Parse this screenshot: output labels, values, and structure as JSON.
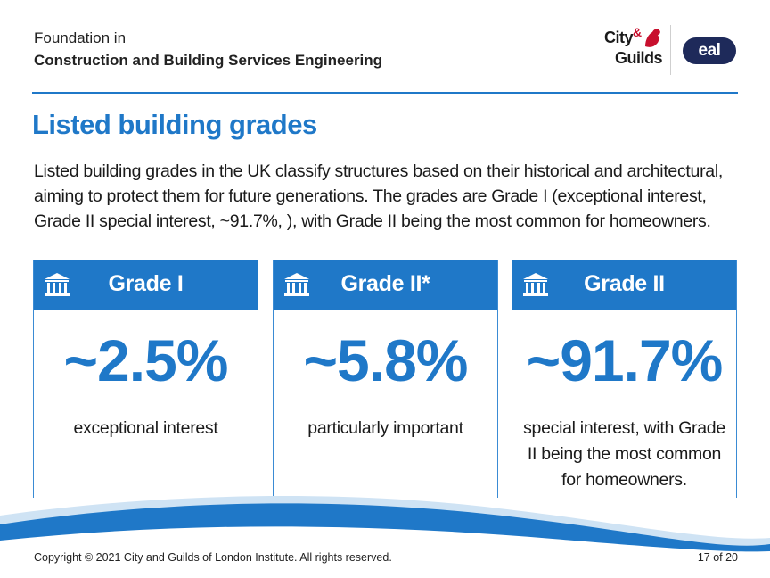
{
  "header": {
    "course_line1": "Foundation in",
    "course_line2": "Construction and Building Services Engineering",
    "logo_city_guilds_line1": "City",
    "logo_city_guilds_amp": "&",
    "logo_city_guilds_line2": "Guilds",
    "logo_eal": "eal"
  },
  "slide": {
    "title": "Listed building grades",
    "intro": "Listed building grades in the UK classify structures based on their historical and architectural, aiming to protect them for future generations. The grades are Grade I (exceptional interest, Grade II special interest, ~91.7%,   ), with Grade II being the most common for homeowners."
  },
  "cards": [
    {
      "label": "Grade I",
      "value": "~2.5%",
      "description": "exceptional interest",
      "icon": "building-columns-icon"
    },
    {
      "label": "Grade II*",
      "value": "~5.8%",
      "description": "particularly important",
      "icon": "building-columns-icon"
    },
    {
      "label": "Grade II",
      "value": "~91.7%",
      "description": "special interest, with Grade II being the most common for homeowners.",
      "icon": "building-columns-icon"
    }
  ],
  "footer": {
    "copyright": "Copyright © 2021 City and Guilds of London Institute. All rights reserved.",
    "page": "17 of 20"
  },
  "colors": {
    "accent_blue": "#1f78c8",
    "eal_navy": "#1e2a5a",
    "logo_red": "#c8102e"
  }
}
